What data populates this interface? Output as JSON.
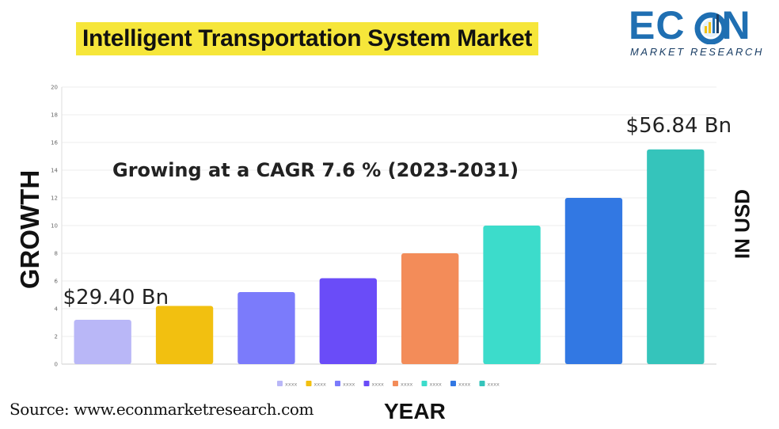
{
  "title": "Intelligent Transportation System Market",
  "logo": {
    "name_part1": "EC",
    "name_part2": "N",
    "subtitle": "MARKET RESEARCH",
    "colors": {
      "primary": "#1f6fb2",
      "secondary": "#1b3f66"
    }
  },
  "left_axis_label": "GROWTH",
  "right_axis_label": "IN USD",
  "x_axis_label": "YEAR",
  "source_text": "Source: www.econmarketresearch.com",
  "chart_data": {
    "type": "bar",
    "categories": [
      "",
      "",
      "",
      "",
      "",
      "",
      "",
      ""
    ],
    "values": [
      3.2,
      4.2,
      5.2,
      6.2,
      8.0,
      10.0,
      12.0,
      15.5
    ],
    "colors": [
      "#b9b7f7",
      "#f2c010",
      "#7b7bfb",
      "#6a4cf8",
      "#f38c59",
      "#3cdccb",
      "#3278e3",
      "#35c4bb"
    ],
    "ylim": [
      0,
      20
    ],
    "yticks": [
      0,
      2,
      4,
      6,
      8,
      10,
      12,
      14,
      16,
      18,
      20
    ],
    "grid": true,
    "legend_labels": [
      "xxxx",
      "xxxx",
      "xxxx",
      "xxxx",
      "xxxx",
      "xxxx",
      "xxxx",
      "xxxx"
    ],
    "legend_position": "bottom",
    "annotations": [
      {
        "text": "$29.40 Bn",
        "bar_index": 0
      },
      {
        "text": "$56.84 Bn",
        "bar_index": 7
      },
      {
        "text": "Growing at a CAGR 7.6 % (2023-2031)"
      }
    ]
  }
}
